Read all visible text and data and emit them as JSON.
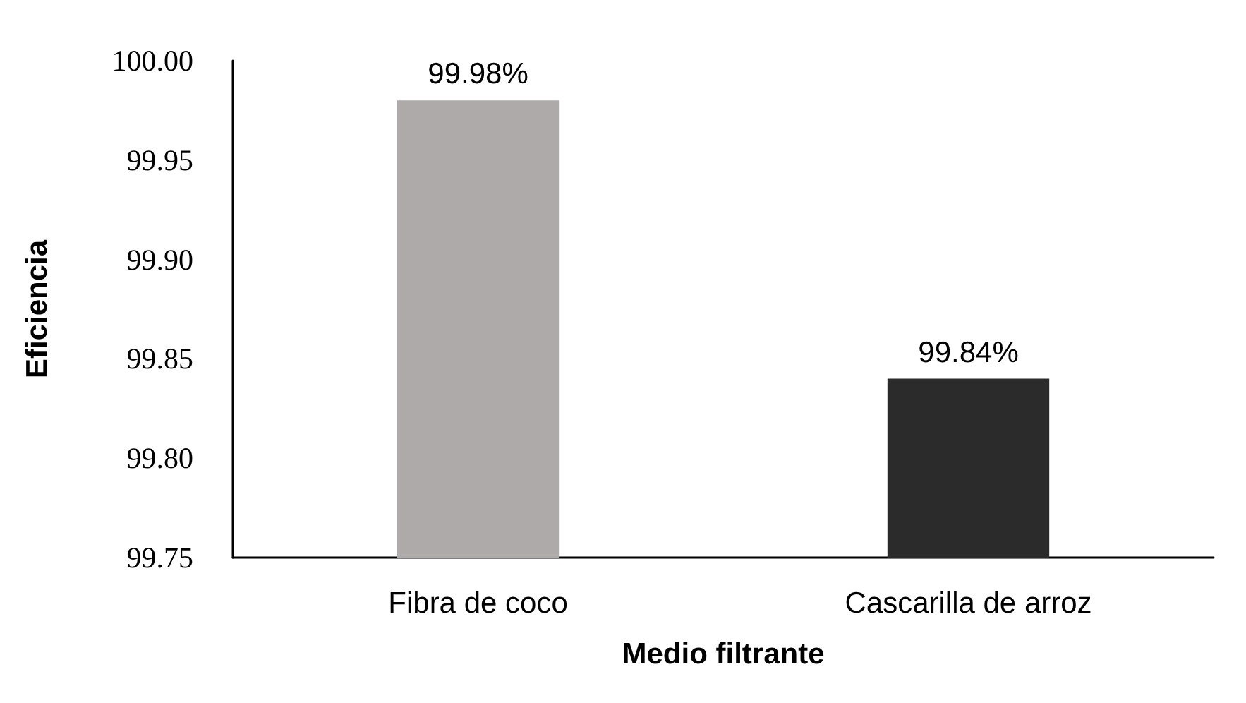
{
  "chart_data": {
    "type": "bar",
    "xlabel": "Medio filtrante",
    "ylabel": "Eficiencia",
    "categories": [
      "Fibra de coco",
      "Cascarilla de arroz"
    ],
    "values": [
      99.98,
      99.84
    ],
    "colors": [
      "#aeaaaa",
      "#2b2b2b"
    ],
    "value_labels": [
      "99.98%",
      "99.84%"
    ],
    "ylim": [
      99.75,
      100
    ],
    "yticks": [
      {
        "value": 99.75,
        "label": "99.75"
      },
      {
        "value": 99.8,
        "label": "99.80"
      },
      {
        "value": 99.85,
        "label": "99.85"
      },
      {
        "value": 99.9,
        "label": "99.90"
      },
      {
        "value": 99.95,
        "label": "99.95"
      },
      {
        "value": 100,
        "label": "100.00"
      }
    ],
    "grid": false
  }
}
